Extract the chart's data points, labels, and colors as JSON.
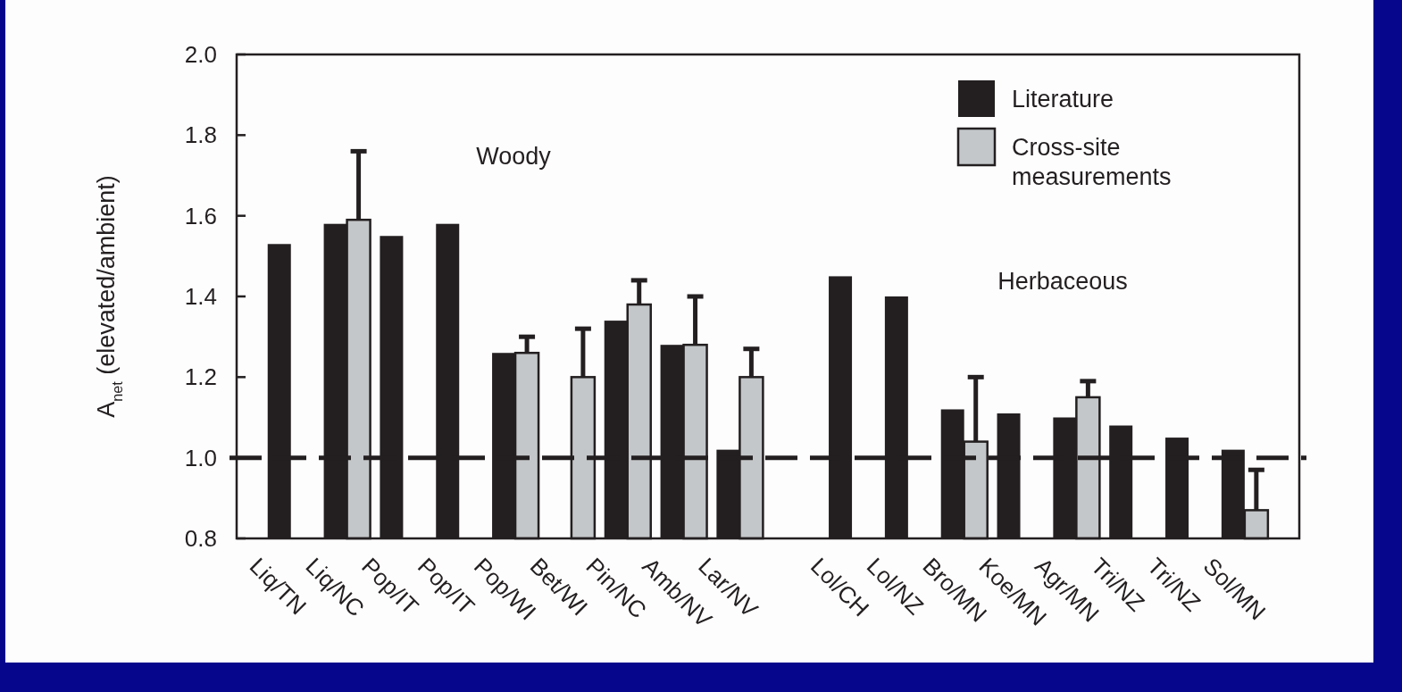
{
  "chart_data": {
    "type": "bar",
    "ylabel": "A$_{net}$ (elevated/ambient)",
    "categories": [
      "Liq/TN",
      "Liq/NC",
      "Pop/IT",
      "Pop/IT",
      "Pop/WI",
      "Bet/WI",
      "Pin/NC",
      "Amb/NV",
      "Lar/NV",
      null,
      "Lol/CH",
      "Lol/NZ",
      "Bro/MN",
      "Koe/MN",
      "Agr/MN",
      "Tri/NZ",
      "Tri/NZ",
      "Sol/MN"
    ],
    "series": [
      {
        "name": "Literature",
        "color": "#231f20",
        "values": [
          1.53,
          1.58,
          1.55,
          1.58,
          1.26,
          null,
          1.34,
          1.28,
          1.02,
          null,
          1.45,
          1.4,
          1.12,
          1.11,
          1.1,
          1.08,
          1.05,
          1.02
        ]
      },
      {
        "name": "Cross-site measurements",
        "color": "#c4c7c9",
        "values": [
          null,
          1.59,
          null,
          null,
          1.26,
          1.2,
          1.38,
          1.28,
          1.2,
          null,
          null,
          null,
          1.04,
          null,
          1.15,
          null,
          null,
          0.87
        ],
        "errors": [
          null,
          [
            1.59,
            1.76
          ],
          null,
          null,
          [
            1.26,
            1.3
          ],
          [
            1.2,
            1.32
          ],
          [
            1.38,
            1.44
          ],
          [
            1.28,
            1.4
          ],
          [
            1.2,
            1.27
          ],
          null,
          null,
          null,
          [
            1.04,
            1.2
          ],
          null,
          [
            1.15,
            1.19
          ],
          null,
          null,
          [
            0.87,
            0.97
          ]
        ]
      }
    ],
    "ylim": [
      0.8,
      2.0
    ],
    "yticks": [
      0.8,
      {
        "value": 1,
        "label": "1.0"
      },
      1.2,
      1.4,
      1.6,
      1.8,
      {
        "value": 2,
        "label": "2.0"
      }
    ],
    "ref_lines": [
      {
        "axis": "y",
        "value": 1,
        "color": "#231f20",
        "line_style": "dashed"
      }
    ],
    "annotations": [
      "Woody",
      "Herbaceous"
    ],
    "legend": "top right"
  }
}
